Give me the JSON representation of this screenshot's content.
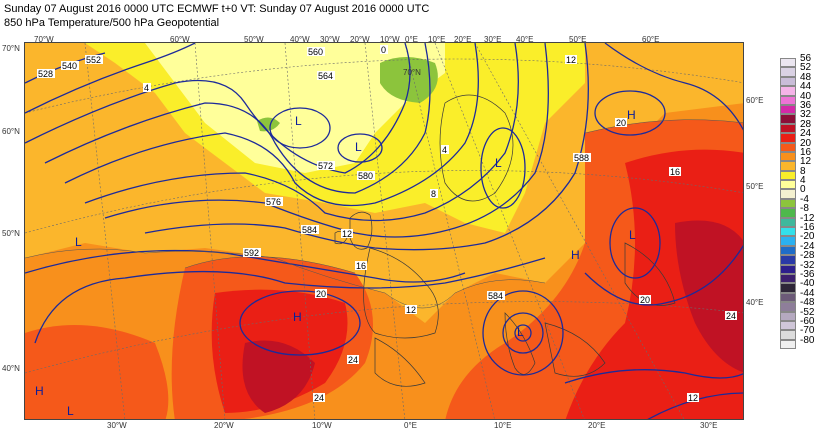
{
  "header": {
    "line1": "Sunday 07 August 2016 0000 UTC  ECMWF  t+0  VT: Sunday 07 August 2016 0000 UTC",
    "line2": "850 hPa Temperature/500 hPa Geopotential"
  },
  "colorbar": {
    "labels": [
      "56",
      "52",
      "48",
      "44",
      "40",
      "36",
      "32",
      "28",
      "24",
      "20",
      "16",
      "12",
      "8",
      "4",
      "0",
      "-4",
      "-8",
      "-12",
      "-16",
      "-20",
      "-24",
      "-28",
      "-32",
      "-36",
      "-40",
      "-44",
      "-48",
      "-52",
      "-60",
      "-70",
      "-80"
    ],
    "colors": [
      "#ebe6f0",
      "#dad2e4",
      "#c9bdd8",
      "#f5b4e8",
      "#ee74d6",
      "#d42aa8",
      "#8c0f38",
      "#c01224",
      "#ea1f15",
      "#f5591a",
      "#f8901c",
      "#fbb62c",
      "#faee2a",
      "#ffff9a",
      "#f4f1d0",
      "#8cc43c",
      "#4eb84c",
      "#3fb89c",
      "#33e0ea",
      "#2bb1f0",
      "#1f6cc7",
      "#2a3aa6",
      "#2e1f8c",
      "#3d206e",
      "#2e2638",
      "#6c5a78",
      "#8e7e9a",
      "#b5a9c0",
      "#cfc6d8",
      "#dcdcdc",
      "#efefef"
    ]
  },
  "map_labels": {
    "top_lon": [
      "70°W",
      "60°W",
      "50°W",
      "40°W",
      "30°W",
      "20°W",
      "10°W",
      "0°E",
      "10°E",
      "20°E",
      "30°E",
      "40°E",
      "50°E",
      "60°E"
    ],
    "bottom_lon": [
      "30°W",
      "20°W",
      "10°W",
      "0°E",
      "10°E",
      "20°E",
      "30°E"
    ],
    "left_lat": [
      "70°N",
      "60°N",
      "50°N",
      "40°N"
    ],
    "right_lat": [
      "60°E",
      "50°E",
      "40°E"
    ],
    "inner_lat": "70°N",
    "pressure_systems": [
      "L",
      "L",
      "L",
      "L",
      "L",
      "L",
      "L",
      "H",
      "H",
      "H",
      "H"
    ],
    "contour_labels": [
      "528",
      "540",
      "552",
      "560",
      "564",
      "572",
      "576",
      "580",
      "584",
      "592",
      "588",
      "584"
    ],
    "temp_labels": [
      "12",
      "12",
      "12",
      "16",
      "20",
      "24",
      "24",
      "20",
      "4",
      "0",
      "4",
      "8",
      "20",
      "24",
      "16",
      "12"
    ]
  }
}
